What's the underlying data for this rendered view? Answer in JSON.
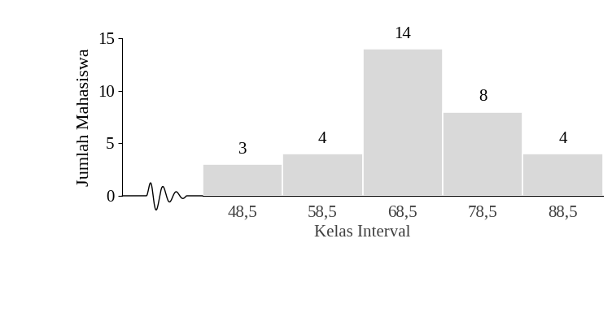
{
  "chart_data": {
    "type": "bar",
    "categories": [
      "48,5",
      "58,5",
      "68,5",
      "78,5",
      "88,5"
    ],
    "values": [
      3,
      4,
      14,
      8,
      4
    ],
    "color": "#d9d9d9",
    "x_label": "Kelas Interval",
    "y_label": "Jumlah Mahasiswa",
    "ylim": [
      0,
      15
    ],
    "yticks": [
      0,
      5,
      10,
      15
    ],
    "grid": false,
    "data_labels": true
  }
}
